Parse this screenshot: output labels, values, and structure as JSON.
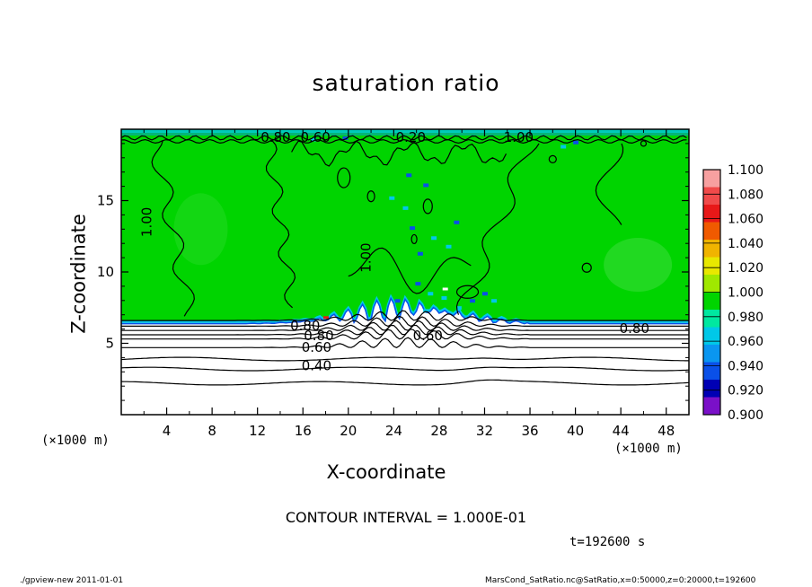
{
  "chart_data": {
    "type": "heatmap",
    "title": "saturation ratio",
    "xlabel": "X-coordinate",
    "ylabel": "Z-coordinate",
    "x_unit": "(×1000 m)",
    "z_unit": "(×1000 m)",
    "xlim": [
      0,
      50
    ],
    "ylim": [
      0,
      20
    ],
    "x_ticks": [
      "4",
      "8",
      "12",
      "16",
      "20",
      "24",
      "28",
      "32",
      "36",
      "40",
      "44",
      "48"
    ],
    "y_ticks": [
      "5",
      "10",
      "15"
    ],
    "colorbar": {
      "levels": [
        "1.100",
        "1.080",
        "1.060",
        "1.040",
        "1.020",
        "1.000",
        "0.980",
        "0.960",
        "0.940",
        "0.920",
        "0.900"
      ],
      "colors": [
        "#f7a0a0",
        "#f04a4a",
        "#e81818",
        "#f05a00",
        "#f0b400",
        "#e8e800",
        "#a0e800",
        "#00d400",
        "#00e8a0",
        "#00c8e8",
        "#0a96f0",
        "#0a50e8",
        "#0000b4",
        "#7a10c8"
      ]
    },
    "contour_labels": [
      "1.00",
      "1.00",
      "0.80",
      "0.80",
      "0.60",
      "0.40",
      "0.20",
      "0.60",
      "0.80",
      "1.00",
      "0.80",
      "0.60"
    ],
    "contour_interval_text": "CONTOUR INTERVAL = 1.000E-01",
    "time_text": "t=192600 s",
    "regions": [
      {
        "z_range": [
          6.5,
          20
        ],
        "value_approx": 1.0,
        "color": "#00d400"
      },
      {
        "z_range": [
          0,
          6.5
        ],
        "value_approx": "0.0 – 0.9",
        "color": "#ffffff"
      }
    ],
    "contour_levels_lower": [
      {
        "z": 6.6,
        "value": 0.9
      },
      {
        "z": 6.2,
        "value": 0.8
      },
      {
        "z": 5.9,
        "value": 0.7
      },
      {
        "z": 5.6,
        "value": 0.6
      },
      {
        "z": 5.3,
        "value": 0.5
      },
      {
        "z": 4.7,
        "value": 0.4
      },
      {
        "z": 3.9,
        "value": 0.3
      },
      {
        "z": 3.2,
        "value": 0.2
      },
      {
        "z": 2.2,
        "value": 0.1
      }
    ]
  },
  "footer": {
    "left": "./gpview-new   2011-01-01",
    "right": "MarsCond_SatRatio.nc@SatRatio,x=0:50000,z=0:20000,t=192600"
  }
}
